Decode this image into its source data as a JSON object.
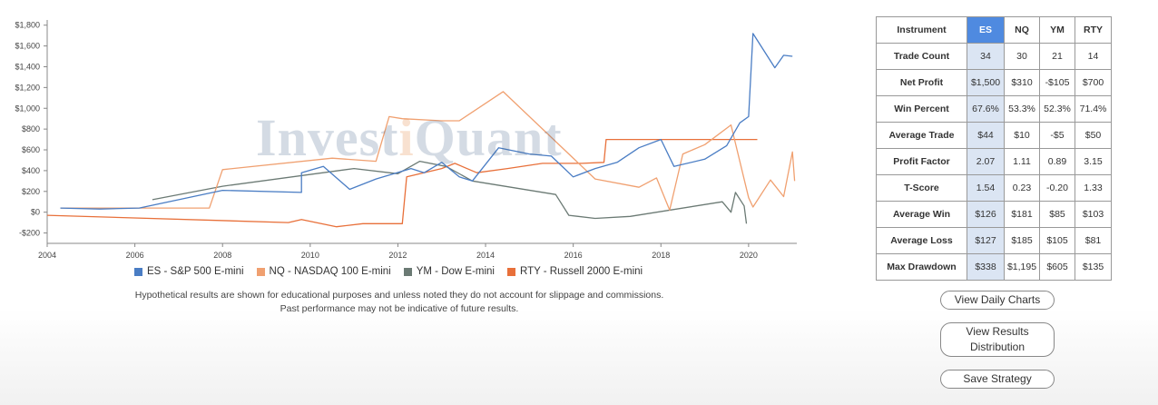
{
  "chart_data": {
    "type": "line",
    "ylim": [
      -300,
      1850
    ],
    "xlim": [
      2004,
      2021.1
    ],
    "y_ticks": [
      -200,
      0,
      200,
      400,
      600,
      800,
      1000,
      1200,
      1400,
      1600,
      1800
    ],
    "y_tick_labels": [
      "-$200",
      "$0",
      "$200",
      "$400",
      "$600",
      "$800",
      "$1,000",
      "$1,200",
      "$1,400",
      "$1,600",
      "$1,800"
    ],
    "x_ticks": [
      2004,
      2006,
      2008,
      2010,
      2012,
      2014,
      2016,
      2018,
      2020
    ],
    "x_tick_labels": [
      "2004",
      "2006",
      "2008",
      "2010",
      "2012",
      "2014",
      "2016",
      "2018",
      "2020"
    ],
    "grid": false,
    "legend_position": "bottom",
    "series": [
      {
        "name": "ES - S&P 500 E-mini",
        "color": "#4a7dc4",
        "x": [
          2004.3,
          2005.2,
          2006.1,
          2008.0,
          2009.8,
          2009.8,
          2010.3,
          2010.9,
          2011.5,
          2012.3,
          2012.6,
          2013.0,
          2013.4,
          2013.7,
          2014.3,
          2015.0,
          2015.5,
          2016.0,
          2016.5,
          2017.0,
          2017.5,
          2018.0,
          2018.3,
          2019.0,
          2019.5,
          2019.8,
          2020.0,
          2020.1,
          2020.6,
          2020.8,
          2021.0
        ],
        "y": [
          40,
          30,
          40,
          210,
          190,
          380,
          440,
          220,
          320,
          420,
          380,
          480,
          340,
          300,
          620,
          560,
          540,
          340,
          420,
          480,
          620,
          700,
          440,
          510,
          640,
          860,
          920,
          1720,
          1390,
          1510,
          1500
        ]
      },
      {
        "name": "NQ - NASDAQ 100 E-mini",
        "color": "#f0a070",
        "x": [
          2004.3,
          2007.7,
          2008.0,
          2010.5,
          2011.5,
          2011.8,
          2012.1,
          2013.0,
          2013.4,
          2014.4,
          2016.5,
          2017.5,
          2017.9,
          2018.2,
          2018.5,
          2019.0,
          2019.6,
          2020.0,
          2020.1,
          2020.5,
          2020.8,
          2021.0,
          2021.05
        ],
        "y": [
          40,
          40,
          410,
          520,
          490,
          920,
          900,
          880,
          880,
          1160,
          320,
          240,
          330,
          20,
          560,
          650,
          840,
          140,
          50,
          310,
          150,
          580,
          300
        ]
      },
      {
        "name": "YM - Dow E-mini",
        "color": "#6b7a74",
        "x": [
          2006.4,
          2008.0,
          2011.0,
          2012.0,
          2012.5,
          2013.1,
          2013.7,
          2015.6,
          2015.9,
          2016.5,
          2017.3,
          2019.4,
          2019.6,
          2019.7,
          2019.9,
          2019.95
        ],
        "y": [
          120,
          250,
          420,
          370,
          490,
          440,
          300,
          170,
          -30,
          -60,
          -40,
          100,
          0,
          190,
          60,
          -110
        ]
      },
      {
        "name": "RTY - Russell 2000 E-mini",
        "color": "#e8703a",
        "x": [
          2004.0,
          2009.5,
          2009.8,
          2010.6,
          2011.2,
          2012.1,
          2012.2,
          2013.0,
          2013.3,
          2013.8,
          2014.5,
          2015.3,
          2016.2,
          2016.7,
          2016.75,
          2018.2,
          2020.2
        ],
        "y": [
          -30,
          -100,
          -70,
          -140,
          -110,
          -110,
          340,
          420,
          470,
          380,
          420,
          470,
          470,
          480,
          700,
          700,
          700
        ]
      }
    ]
  },
  "watermark": {
    "prefix": "Invest",
    "highlight": "i",
    "suffix": "Quant"
  },
  "disclaimer": {
    "line1": "Hypothetical results are shown for educational purposes and unless noted they do not account for slippage and commissions.",
    "line2": "Past performance may not be indicative of future results."
  },
  "stats_table": {
    "header": [
      "Instrument",
      "ES",
      "NQ",
      "YM",
      "RTY"
    ],
    "rows": [
      {
        "label": "Trade Count",
        "values": [
          "34",
          "30",
          "21",
          "14"
        ]
      },
      {
        "label": "Net Profit",
        "values": [
          "$1,500",
          "$310",
          "-$105",
          "$700"
        ]
      },
      {
        "label": "Win Percent",
        "values": [
          "67.6%",
          "53.3%",
          "52.3%",
          "71.4%"
        ]
      },
      {
        "label": "Average Trade",
        "values": [
          "$44",
          "$10",
          "-$5",
          "$50"
        ]
      },
      {
        "label": "Profit Factor",
        "values": [
          "2.07",
          "1.11",
          "0.89",
          "3.15"
        ]
      },
      {
        "label": "T-Score",
        "values": [
          "1.54",
          "0.23",
          "-0.20",
          "1.33"
        ]
      },
      {
        "label": "Average Win",
        "values": [
          "$126",
          "$181",
          "$85",
          "$103"
        ]
      },
      {
        "label": "Average Loss",
        "values": [
          "$127",
          "$185",
          "$105",
          "$81"
        ]
      },
      {
        "label": "Max Drawdown",
        "values": [
          "$338",
          "$1,195",
          "$605",
          "$135"
        ]
      }
    ],
    "selected_color": "#4f8ae0"
  },
  "buttons": {
    "daily": "View Daily Charts",
    "dist_line1": "View Results",
    "dist_line2": "Distribution",
    "save": "Save Strategy"
  }
}
